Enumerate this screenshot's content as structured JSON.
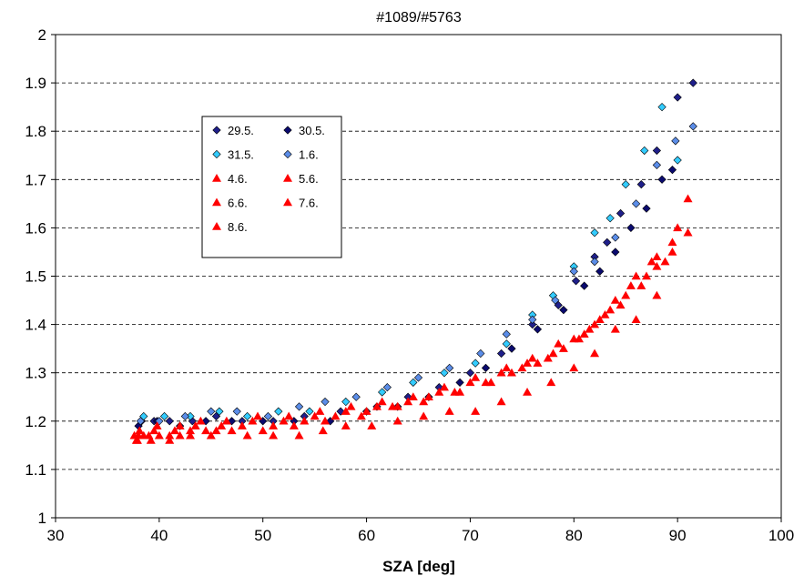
{
  "chart_data": {
    "type": "scatter",
    "title": "#1089/#5763",
    "xlabel": "SZA [deg]",
    "ylabel": "",
    "xlim": [
      30,
      100
    ],
    "ylim": [
      1,
      2
    ],
    "xticks": [
      30,
      40,
      50,
      60,
      70,
      80,
      90,
      100
    ],
    "yticks": [
      1,
      1.1,
      1.2,
      1.3,
      1.4,
      1.5,
      1.6,
      1.7,
      1.8,
      1.9,
      2
    ],
    "ytick_labels": [
      "1",
      "1.1",
      "1.2",
      "1.3",
      "1.4",
      "1.5",
      "1.6",
      "1.7",
      "1.8",
      "1.9",
      "2"
    ],
    "grid": "horizontal dashed",
    "legend_position": "upper-left",
    "series": [
      {
        "name": "29.5.",
        "marker": "diamond",
        "color": "#1f1f8a",
        "points": [
          [
            38.3,
            1.2
          ],
          [
            39.5,
            1.2
          ],
          [
            41.0,
            1.2
          ],
          [
            43.2,
            1.2
          ],
          [
            45.5,
            1.21
          ],
          [
            48.0,
            1.2
          ],
          [
            51.0,
            1.2
          ],
          [
            54.0,
            1.21
          ],
          [
            57.5,
            1.22
          ],
          [
            61.0,
            1.23
          ],
          [
            64.0,
            1.25
          ],
          [
            67.0,
            1.27
          ],
          [
            70.0,
            1.3
          ],
          [
            73.0,
            1.34
          ],
          [
            76.0,
            1.4
          ],
          [
            78.5,
            1.44
          ],
          [
            80.2,
            1.49
          ],
          [
            82.0,
            1.54
          ],
          [
            83.2,
            1.57
          ],
          [
            84.5,
            1.63
          ],
          [
            86.5,
            1.69
          ],
          [
            88.0,
            1.76
          ],
          [
            90.0,
            1.87
          ],
          [
            91.5,
            1.9
          ]
        ]
      },
      {
        "name": "30.5.",
        "marker": "diamond",
        "color": "#0a0a6e",
        "points": [
          [
            38.0,
            1.19
          ],
          [
            39.8,
            1.2
          ],
          [
            42.0,
            1.19
          ],
          [
            44.5,
            1.2
          ],
          [
            47.0,
            1.2
          ],
          [
            50.0,
            1.2
          ],
          [
            53.0,
            1.2
          ],
          [
            56.5,
            1.2
          ],
          [
            60.0,
            1.22
          ],
          [
            63.0,
            1.23
          ],
          [
            66.0,
            1.25
          ],
          [
            69.0,
            1.28
          ],
          [
            71.5,
            1.31
          ],
          [
            74.0,
            1.35
          ],
          [
            76.5,
            1.39
          ],
          [
            79.0,
            1.43
          ],
          [
            81.0,
            1.48
          ],
          [
            82.5,
            1.51
          ],
          [
            84.0,
            1.55
          ],
          [
            85.5,
            1.6
          ],
          [
            87.0,
            1.64
          ],
          [
            88.5,
            1.7
          ],
          [
            89.5,
            1.72
          ]
        ]
      },
      {
        "name": "31.5.",
        "marker": "diamond",
        "color": "#33ccff",
        "points": [
          [
            38.5,
            1.21
          ],
          [
            40.5,
            1.21
          ],
          [
            43.0,
            1.21
          ],
          [
            45.8,
            1.22
          ],
          [
            48.5,
            1.21
          ],
          [
            51.5,
            1.22
          ],
          [
            54.5,
            1.22
          ],
          [
            58.0,
            1.24
          ],
          [
            61.5,
            1.26
          ],
          [
            64.5,
            1.28
          ],
          [
            67.5,
            1.3
          ],
          [
            70.5,
            1.32
          ],
          [
            73.5,
            1.36
          ],
          [
            76.0,
            1.42
          ],
          [
            78.0,
            1.46
          ],
          [
            80.0,
            1.52
          ],
          [
            82.0,
            1.59
          ],
          [
            83.5,
            1.62
          ],
          [
            85.0,
            1.69
          ],
          [
            86.8,
            1.76
          ],
          [
            88.5,
            1.85
          ],
          [
            90.0,
            1.74
          ]
        ]
      },
      {
        "name": "1.6.",
        "marker": "diamond",
        "color": "#5b8de8",
        "points": [
          [
            38.2,
            1.2
          ],
          [
            40.0,
            1.2
          ],
          [
            42.5,
            1.21
          ],
          [
            45.0,
            1.22
          ],
          [
            47.5,
            1.22
          ],
          [
            50.5,
            1.21
          ],
          [
            53.5,
            1.23
          ],
          [
            56.0,
            1.24
          ],
          [
            59.0,
            1.25
          ],
          [
            62.0,
            1.27
          ],
          [
            65.0,
            1.29
          ],
          [
            68.0,
            1.31
          ],
          [
            71.0,
            1.34
          ],
          [
            73.5,
            1.38
          ],
          [
            76.0,
            1.41
          ],
          [
            78.2,
            1.45
          ],
          [
            80.0,
            1.51
          ],
          [
            82.0,
            1.53
          ],
          [
            84.0,
            1.58
          ],
          [
            86.0,
            1.65
          ],
          [
            88.0,
            1.73
          ],
          [
            89.8,
            1.78
          ],
          [
            91.5,
            1.81
          ]
        ]
      },
      {
        "name": "4.6.",
        "marker": "triangle",
        "color": "#ff0000",
        "points": [
          [
            37.6,
            1.17
          ],
          [
            38.5,
            1.17
          ],
          [
            40.0,
            1.17
          ],
          [
            42.0,
            1.17
          ],
          [
            44.5,
            1.18
          ],
          [
            47.0,
            1.18
          ],
          [
            50.0,
            1.18
          ],
          [
            53.0,
            1.19
          ],
          [
            56.0,
            1.2
          ],
          [
            59.5,
            1.21
          ],
          [
            62.5,
            1.23
          ],
          [
            65.5,
            1.24
          ],
          [
            68.5,
            1.26
          ],
          [
            71.5,
            1.28
          ],
          [
            74.0,
            1.3
          ],
          [
            76.5,
            1.32
          ],
          [
            79.0,
            1.35
          ],
          [
            81.5,
            1.39
          ],
          [
            83.5,
            1.43
          ],
          [
            85.5,
            1.48
          ],
          [
            87.5,
            1.53
          ],
          [
            89.5,
            1.57
          ],
          [
            91.0,
            1.59
          ]
        ]
      },
      {
        "name": "5.6.",
        "marker": "triangle",
        "color": "#ff0000",
        "points": [
          [
            37.8,
            1.16
          ],
          [
            39.0,
            1.17
          ],
          [
            41.0,
            1.17
          ],
          [
            43.0,
            1.18
          ],
          [
            45.5,
            1.18
          ],
          [
            48.0,
            1.19
          ],
          [
            51.0,
            1.19
          ],
          [
            54.0,
            1.2
          ],
          [
            57.0,
            1.21
          ],
          [
            60.0,
            1.22
          ],
          [
            63.0,
            1.23
          ],
          [
            66.0,
            1.25
          ],
          [
            69.0,
            1.26
          ],
          [
            72.0,
            1.28
          ],
          [
            75.0,
            1.31
          ],
          [
            77.5,
            1.33
          ],
          [
            80.0,
            1.37
          ],
          [
            82.0,
            1.4
          ],
          [
            84.0,
            1.45
          ],
          [
            86.0,
            1.5
          ],
          [
            88.0,
            1.54
          ],
          [
            90.0,
            1.6
          ],
          [
            91.0,
            1.66
          ]
        ]
      },
      {
        "name": "6.6.",
        "marker": "triangle",
        "color": "#ff0000",
        "points": [
          [
            38.0,
            1.17
          ],
          [
            39.5,
            1.18
          ],
          [
            41.5,
            1.18
          ],
          [
            43.5,
            1.19
          ],
          [
            46.0,
            1.19
          ],
          [
            49.0,
            1.2
          ],
          [
            52.0,
            1.2
          ],
          [
            55.0,
            1.21
          ],
          [
            58.0,
            1.22
          ],
          [
            61.0,
            1.23
          ],
          [
            64.0,
            1.24
          ],
          [
            67.0,
            1.26
          ],
          [
            70.0,
            1.28
          ],
          [
            73.0,
            1.3
          ],
          [
            75.5,
            1.32
          ],
          [
            78.0,
            1.34
          ],
          [
            80.5,
            1.37
          ],
          [
            82.5,
            1.41
          ],
          [
            84.5,
            1.44
          ],
          [
            86.5,
            1.48
          ],
          [
            88.0,
            1.52
          ]
        ]
      },
      {
        "name": "7.6.",
        "marker": "triangle",
        "color": "#ff0000",
        "points": [
          [
            37.9,
            1.16
          ],
          [
            39.2,
            1.16
          ],
          [
            41.0,
            1.16
          ],
          [
            43.0,
            1.17
          ],
          [
            45.0,
            1.17
          ],
          [
            48.5,
            1.17
          ],
          [
            51.0,
            1.17
          ],
          [
            53.5,
            1.17
          ],
          [
            55.8,
            1.18
          ],
          [
            58.0,
            1.19
          ],
          [
            60.5,
            1.19
          ],
          [
            63.0,
            1.2
          ],
          [
            65.5,
            1.21
          ],
          [
            68.0,
            1.22
          ],
          [
            70.5,
            1.22
          ],
          [
            73.0,
            1.24
          ],
          [
            75.5,
            1.26
          ],
          [
            77.8,
            1.28
          ],
          [
            80.0,
            1.31
          ],
          [
            82.0,
            1.34
          ],
          [
            84.0,
            1.39
          ],
          [
            86.0,
            1.41
          ],
          [
            88.0,
            1.46
          ],
          [
            89.5,
            1.55
          ]
        ]
      },
      {
        "name": "8.6.",
        "marker": "triangle",
        "color": "#ff0000",
        "points": [
          [
            38.1,
            1.18
          ],
          [
            39.8,
            1.19
          ],
          [
            42.0,
            1.19
          ],
          [
            44.0,
            1.2
          ],
          [
            46.5,
            1.2
          ],
          [
            49.5,
            1.21
          ],
          [
            52.5,
            1.21
          ],
          [
            55.5,
            1.22
          ],
          [
            58.5,
            1.23
          ],
          [
            61.5,
            1.24
          ],
          [
            64.5,
            1.25
          ],
          [
            67.5,
            1.27
          ],
          [
            70.5,
            1.29
          ],
          [
            73.5,
            1.31
          ],
          [
            76.0,
            1.33
          ],
          [
            78.5,
            1.36
          ],
          [
            81.0,
            1.38
          ],
          [
            83.0,
            1.42
          ],
          [
            85.0,
            1.46
          ],
          [
            87.0,
            1.5
          ],
          [
            88.8,
            1.53
          ]
        ]
      }
    ]
  }
}
